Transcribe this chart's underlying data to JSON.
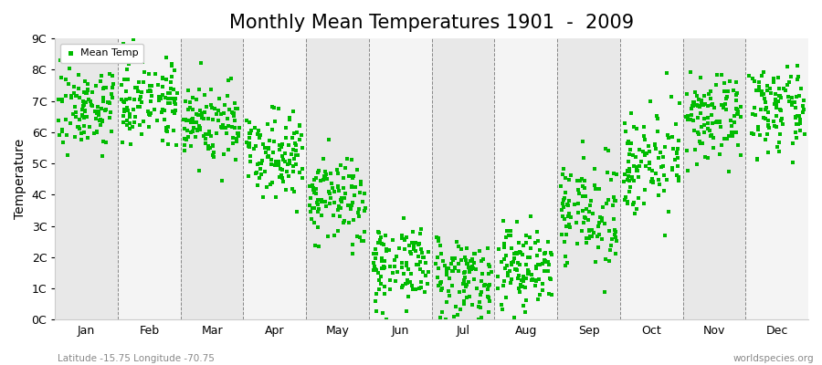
{
  "title": "Monthly Mean Temperatures 1901  -  2009",
  "ylabel": "Temperature",
  "ylim": [
    0,
    9
  ],
  "ytick_labels": [
    "0C",
    "1C",
    "2C",
    "3C",
    "4C",
    "5C",
    "6C",
    "7C",
    "8C",
    "9C"
  ],
  "ytick_values": [
    0,
    1,
    2,
    3,
    4,
    5,
    6,
    7,
    8,
    9
  ],
  "months": [
    "Jan",
    "Feb",
    "Mar",
    "Apr",
    "May",
    "Jun",
    "Jul",
    "Aug",
    "Sep",
    "Oct",
    "Nov",
    "Dec"
  ],
  "month_positions": [
    0.5,
    1.5,
    2.5,
    3.5,
    4.5,
    5.5,
    6.5,
    7.5,
    8.5,
    9.5,
    10.5,
    11.5
  ],
  "month_dividers": [
    0,
    1,
    2,
    3,
    4,
    5,
    6,
    7,
    8,
    9,
    10,
    11,
    12
  ],
  "xlim": [
    0,
    12
  ],
  "dot_color": "#00bb00",
  "band_color_dark": "#e8e8e8",
  "band_color_light": "#f4f4f4",
  "marker": "s",
  "marker_size": 3,
  "legend_label": "Mean Temp",
  "bottom_left": "Latitude -15.75 Longitude -70.75",
  "bottom_right": "worldspecies.org",
  "title_fontsize": 15,
  "axis_label_fontsize": 10,
  "tick_fontsize": 9,
  "random_seed": 7,
  "n_years": 109,
  "monthly_means": [
    6.8,
    7.1,
    6.3,
    5.4,
    3.8,
    1.8,
    1.4,
    1.7,
    3.4,
    5.1,
    6.4,
    6.7
  ],
  "monthly_stds": [
    0.65,
    0.65,
    0.65,
    0.65,
    0.75,
    0.65,
    0.65,
    0.7,
    0.8,
    0.8,
    0.65,
    0.65
  ]
}
